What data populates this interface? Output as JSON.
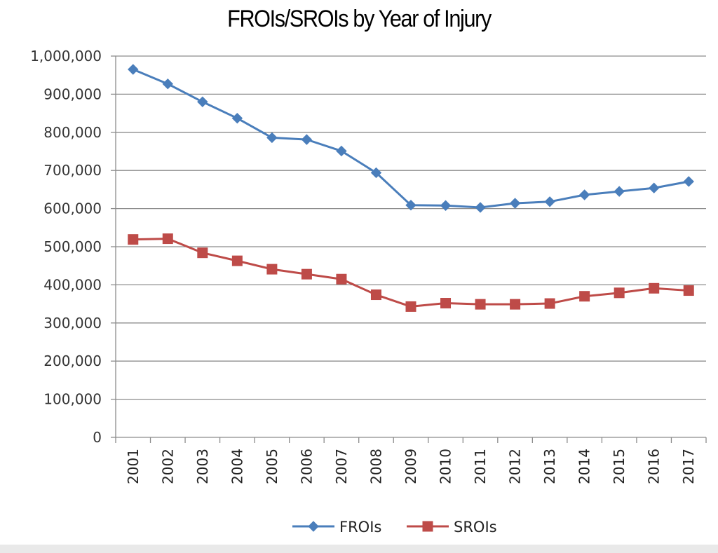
{
  "chart_data": {
    "type": "line",
    "title": "FROIs/SROIs by Year of Injury",
    "xlabel": "",
    "ylabel": "",
    "x": [
      "2001",
      "2002",
      "2003",
      "2004",
      "2005",
      "2006",
      "2007",
      "2008",
      "2009",
      "2010",
      "2011",
      "2012",
      "2013",
      "2014",
      "2015",
      "2016",
      "2017"
    ],
    "ylim": [
      0,
      1000000
    ],
    "yticks": [
      0,
      100000,
      200000,
      300000,
      400000,
      500000,
      600000,
      700000,
      800000,
      900000,
      1000000
    ],
    "ytick_labels": [
      "0",
      "100,000",
      "200,000",
      "300,000",
      "400,000",
      "500,000",
      "600,000",
      "700,000",
      "800,000",
      "900,000",
      "1,000,000"
    ],
    "grid": "horizontal",
    "legend_position": "bottom",
    "series": [
      {
        "name": "FROIs",
        "marker": "diamond",
        "color": "#4a7ebb",
        "values": [
          965000,
          927000,
          880000,
          837000,
          786000,
          781000,
          751000,
          694000,
          609000,
          608000,
          603000,
          614000,
          618000,
          636000,
          645000,
          654000,
          671000
        ]
      },
      {
        "name": "SROIs",
        "marker": "square",
        "color": "#be4b48",
        "values": [
          519000,
          521000,
          484000,
          463000,
          441000,
          428000,
          415000,
          374000,
          343000,
          352000,
          349000,
          349000,
          351000,
          370000,
          379000,
          391000,
          385000
        ]
      }
    ]
  }
}
